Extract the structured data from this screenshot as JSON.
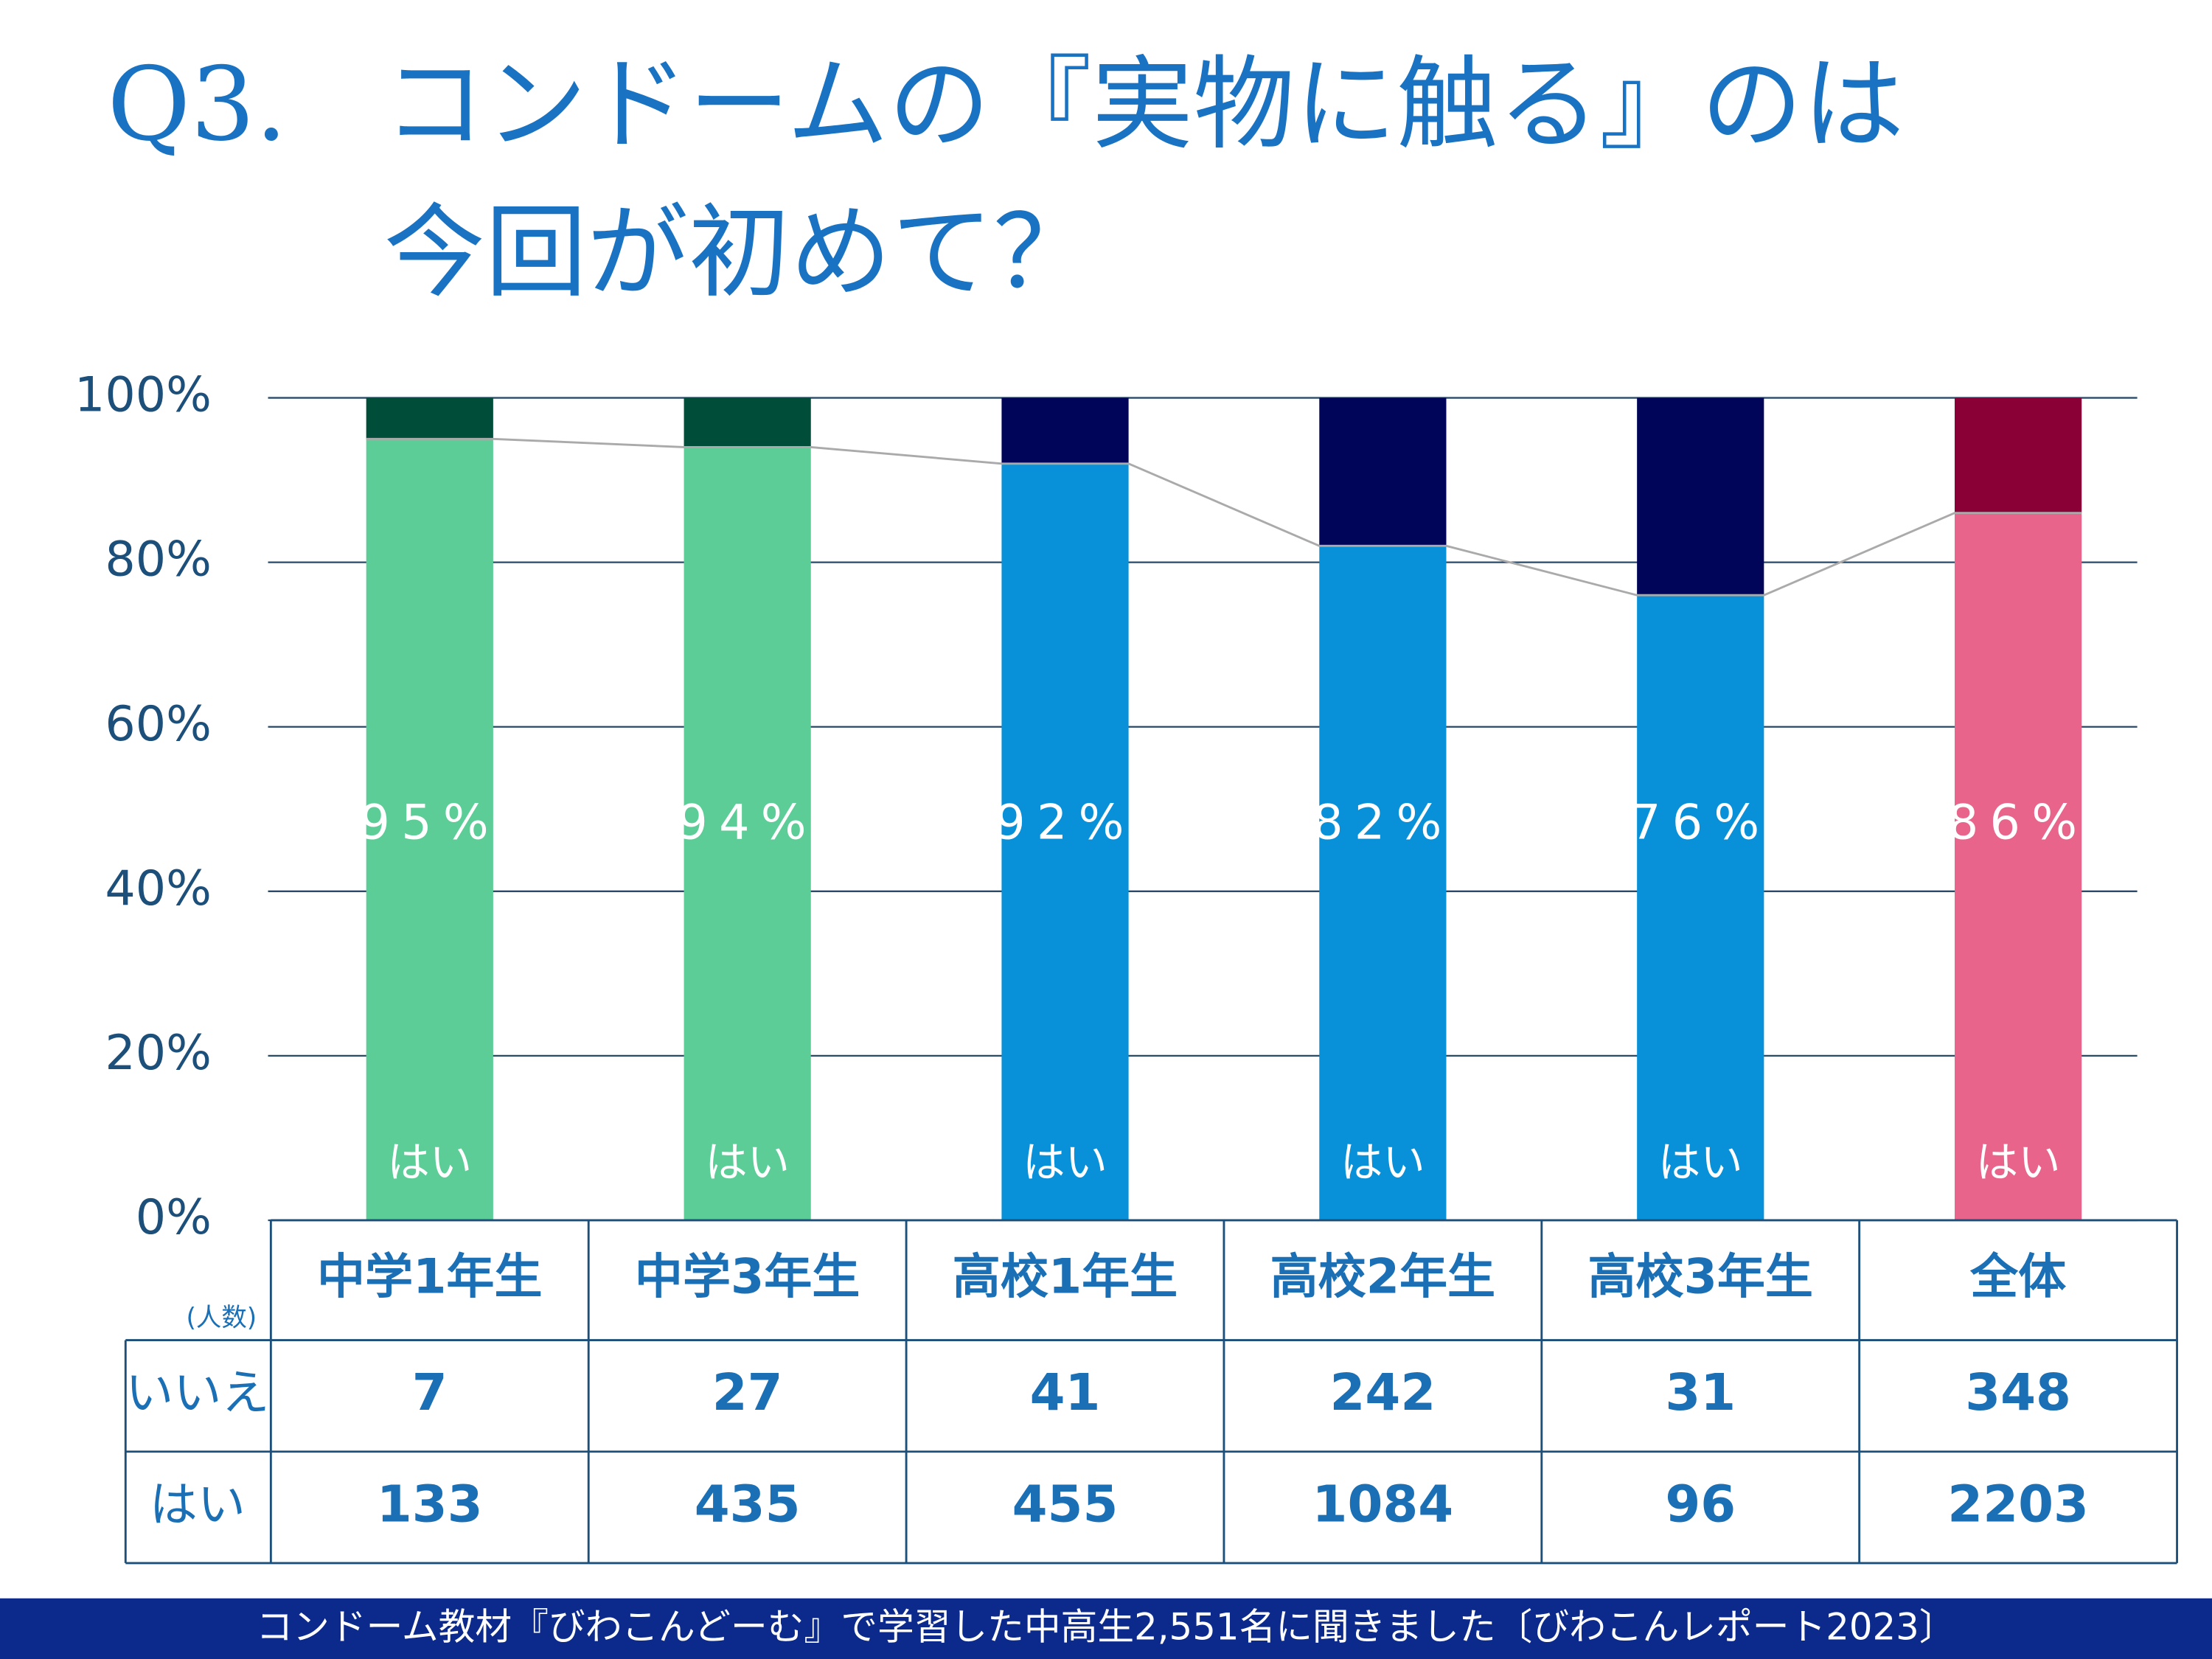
{
  "chart_data": {
    "type": "bar",
    "stacked": true,
    "title_number": "Q3.",
    "title_lines": [
      "コンドームの『実物に触る』のは",
      "今回が初めて？"
    ],
    "categories": [
      "中学1年生",
      "中学3年生",
      "高校1年生",
      "高校2年生",
      "高校3年生",
      "全体"
    ],
    "series": [
      {
        "name": "はい",
        "colors": [
          "#5ccd96",
          "#5ccd96",
          "#0891d9",
          "#0891d9",
          "#0891d9",
          "#e8648a"
        ],
        "values": [
          95,
          94,
          92,
          82,
          76,
          86
        ],
        "value_labels": [
          "95%",
          "94%",
          "92%",
          "82%",
          "76%",
          "86%"
        ]
      },
      {
        "name": "いいえ",
        "colors": [
          "#004d3a",
          "#004d3a",
          "#00055a",
          "#00055a",
          "#00055a",
          "#8a0036"
        ],
        "values": [
          5,
          6,
          8,
          18,
          24,
          14
        ]
      }
    ],
    "ylim": [
      0,
      100
    ],
    "yticks": [
      {
        "value": 0,
        "label": "0%"
      },
      {
        "value": 20,
        "label": "20%"
      },
      {
        "value": 40,
        "label": "40%"
      },
      {
        "value": 60,
        "label": "60%"
      },
      {
        "value": 80,
        "label": "80%"
      },
      {
        "value": 100,
        "label": "100%"
      }
    ],
    "grid": true,
    "table": {
      "unit": "(人数)",
      "rows": [
        {
          "label": "いいえ",
          "values": [
            7,
            27,
            41,
            242,
            31,
            348
          ]
        },
        {
          "label": "はい",
          "values": [
            133,
            435,
            455,
            1084,
            96,
            2203
          ]
        }
      ]
    },
    "footer": "コンドーム教材『びわこんどーむ』で学習した中高生2,551名に聞きました〔びわこんレポート2023〕"
  }
}
